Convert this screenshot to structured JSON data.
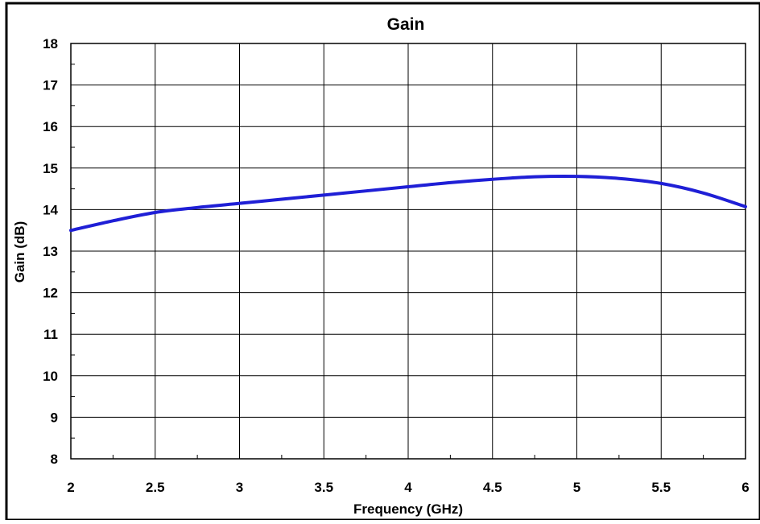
{
  "chart_data": {
    "type": "line",
    "title": "Gain",
    "xlabel": "Frequency (GHz)",
    "ylabel": "Gain (dB)",
    "xlim": [
      2,
      6
    ],
    "ylim": [
      8,
      18
    ],
    "x_ticks": [
      "2",
      "2.5",
      "3",
      "3.5",
      "4",
      "4.5",
      "5",
      "5.5",
      "6"
    ],
    "y_ticks": [
      "8",
      "9",
      "10",
      "11",
      "12",
      "13",
      "14",
      "15",
      "16",
      "17",
      "18"
    ],
    "grid": true,
    "legend": "none",
    "series": [
      {
        "color": "#1f1fd6",
        "x": [
          2.0,
          2.25,
          2.5,
          2.75,
          3.0,
          3.25,
          3.5,
          3.75,
          4.0,
          4.25,
          4.5,
          4.75,
          5.0,
          5.25,
          5.5,
          5.75,
          6.0
        ],
        "y": [
          13.5,
          13.73,
          13.93,
          14.05,
          14.15,
          14.25,
          14.35,
          14.45,
          14.55,
          14.65,
          14.73,
          14.79,
          14.8,
          14.75,
          14.63,
          14.4,
          14.07
        ]
      }
    ]
  }
}
